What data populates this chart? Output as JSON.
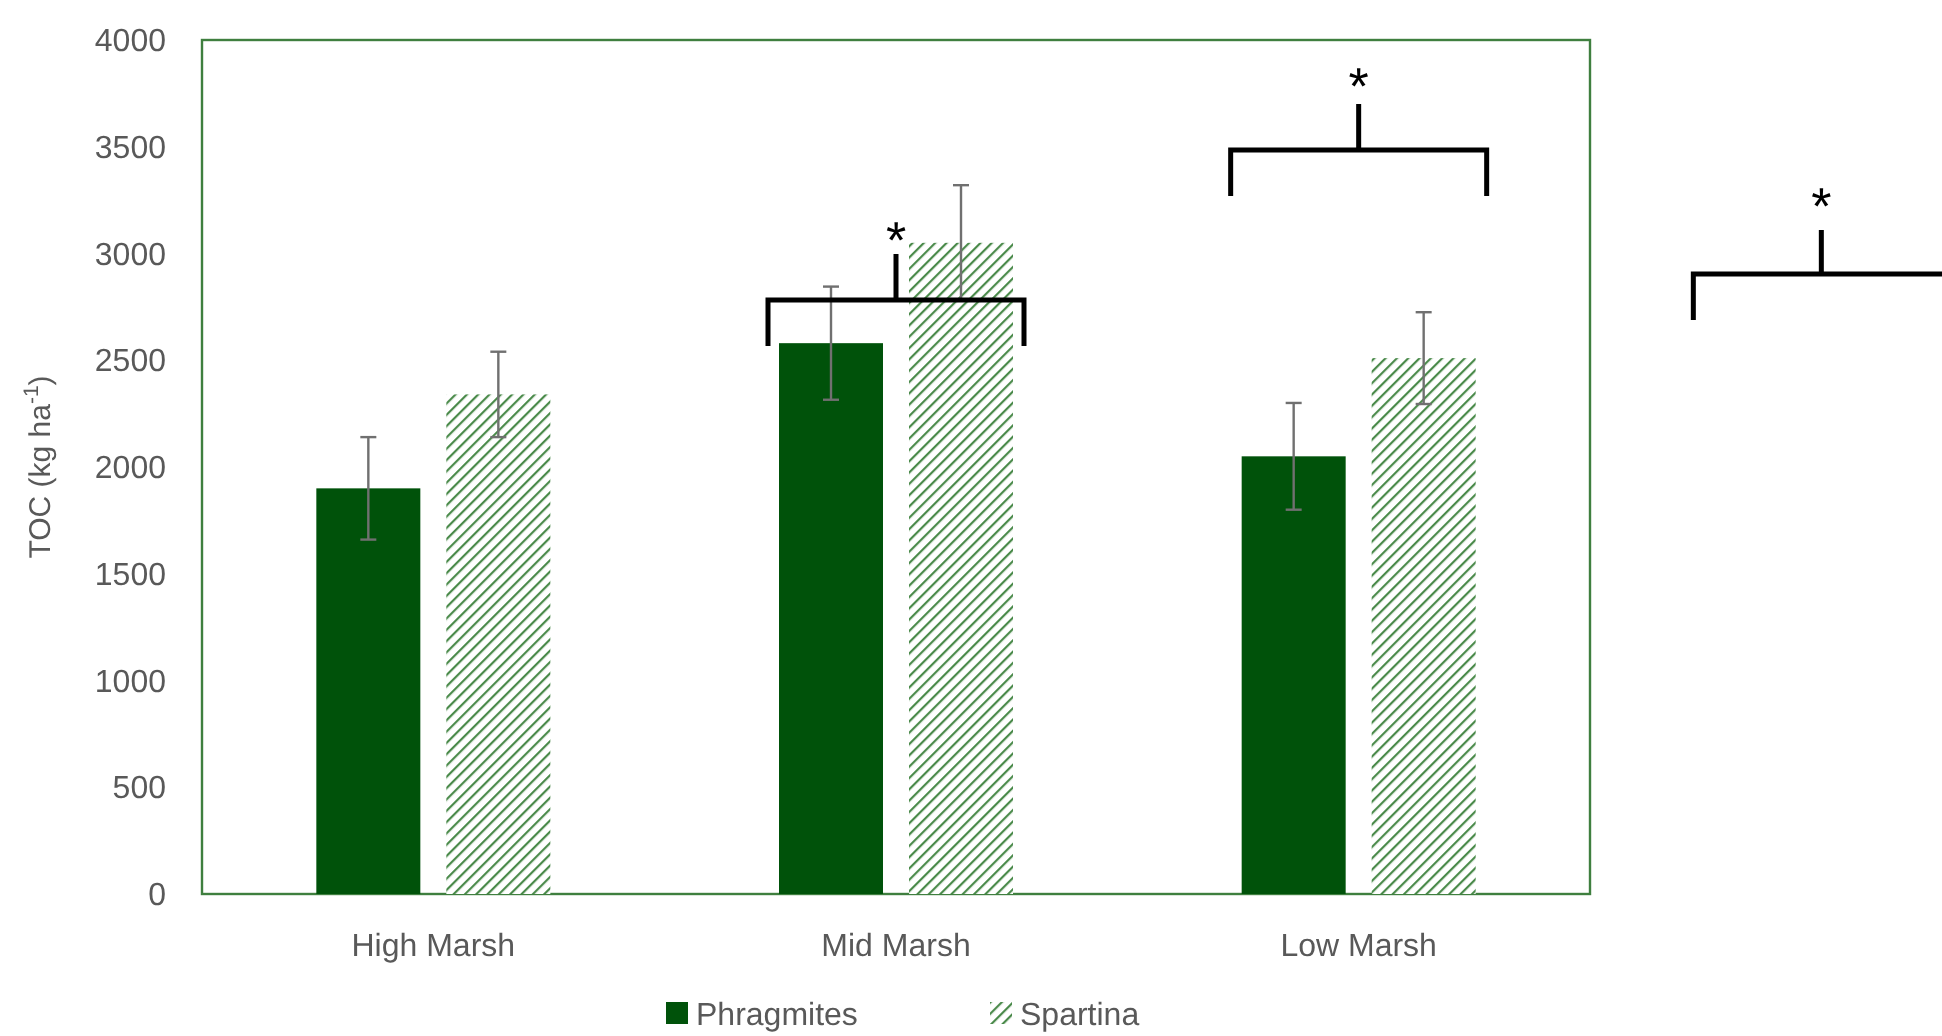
{
  "chart_data": {
    "type": "bar",
    "ylabel": "TOC (kg ha$^{-1}$)",
    "categories": [
      "High Marsh",
      "Mid Marsh",
      "Low Marsh"
    ],
    "series": [
      {
        "name": "Phragmites",
        "color": "#00520a",
        "values": [
          1900,
          2580,
          2050
        ],
        "errors": [
          240,
          265,
          250
        ]
      },
      {
        "name": "Spartina",
        "color": "#4a8a4a",
        "values": [
          2340,
          3050,
          2510
        ],
        "errors": [
          200,
          270,
          215
        ]
      }
    ],
    "ylim": [
      0,
      4000
    ],
    "yticks": [
      0,
      500,
      1000,
      1500,
      2000,
      2500,
      3000,
      3500,
      4000
    ],
    "grid": false,
    "legend": "bottom",
    "annotations": [
      "*",
      "*",
      "*"
    ]
  }
}
